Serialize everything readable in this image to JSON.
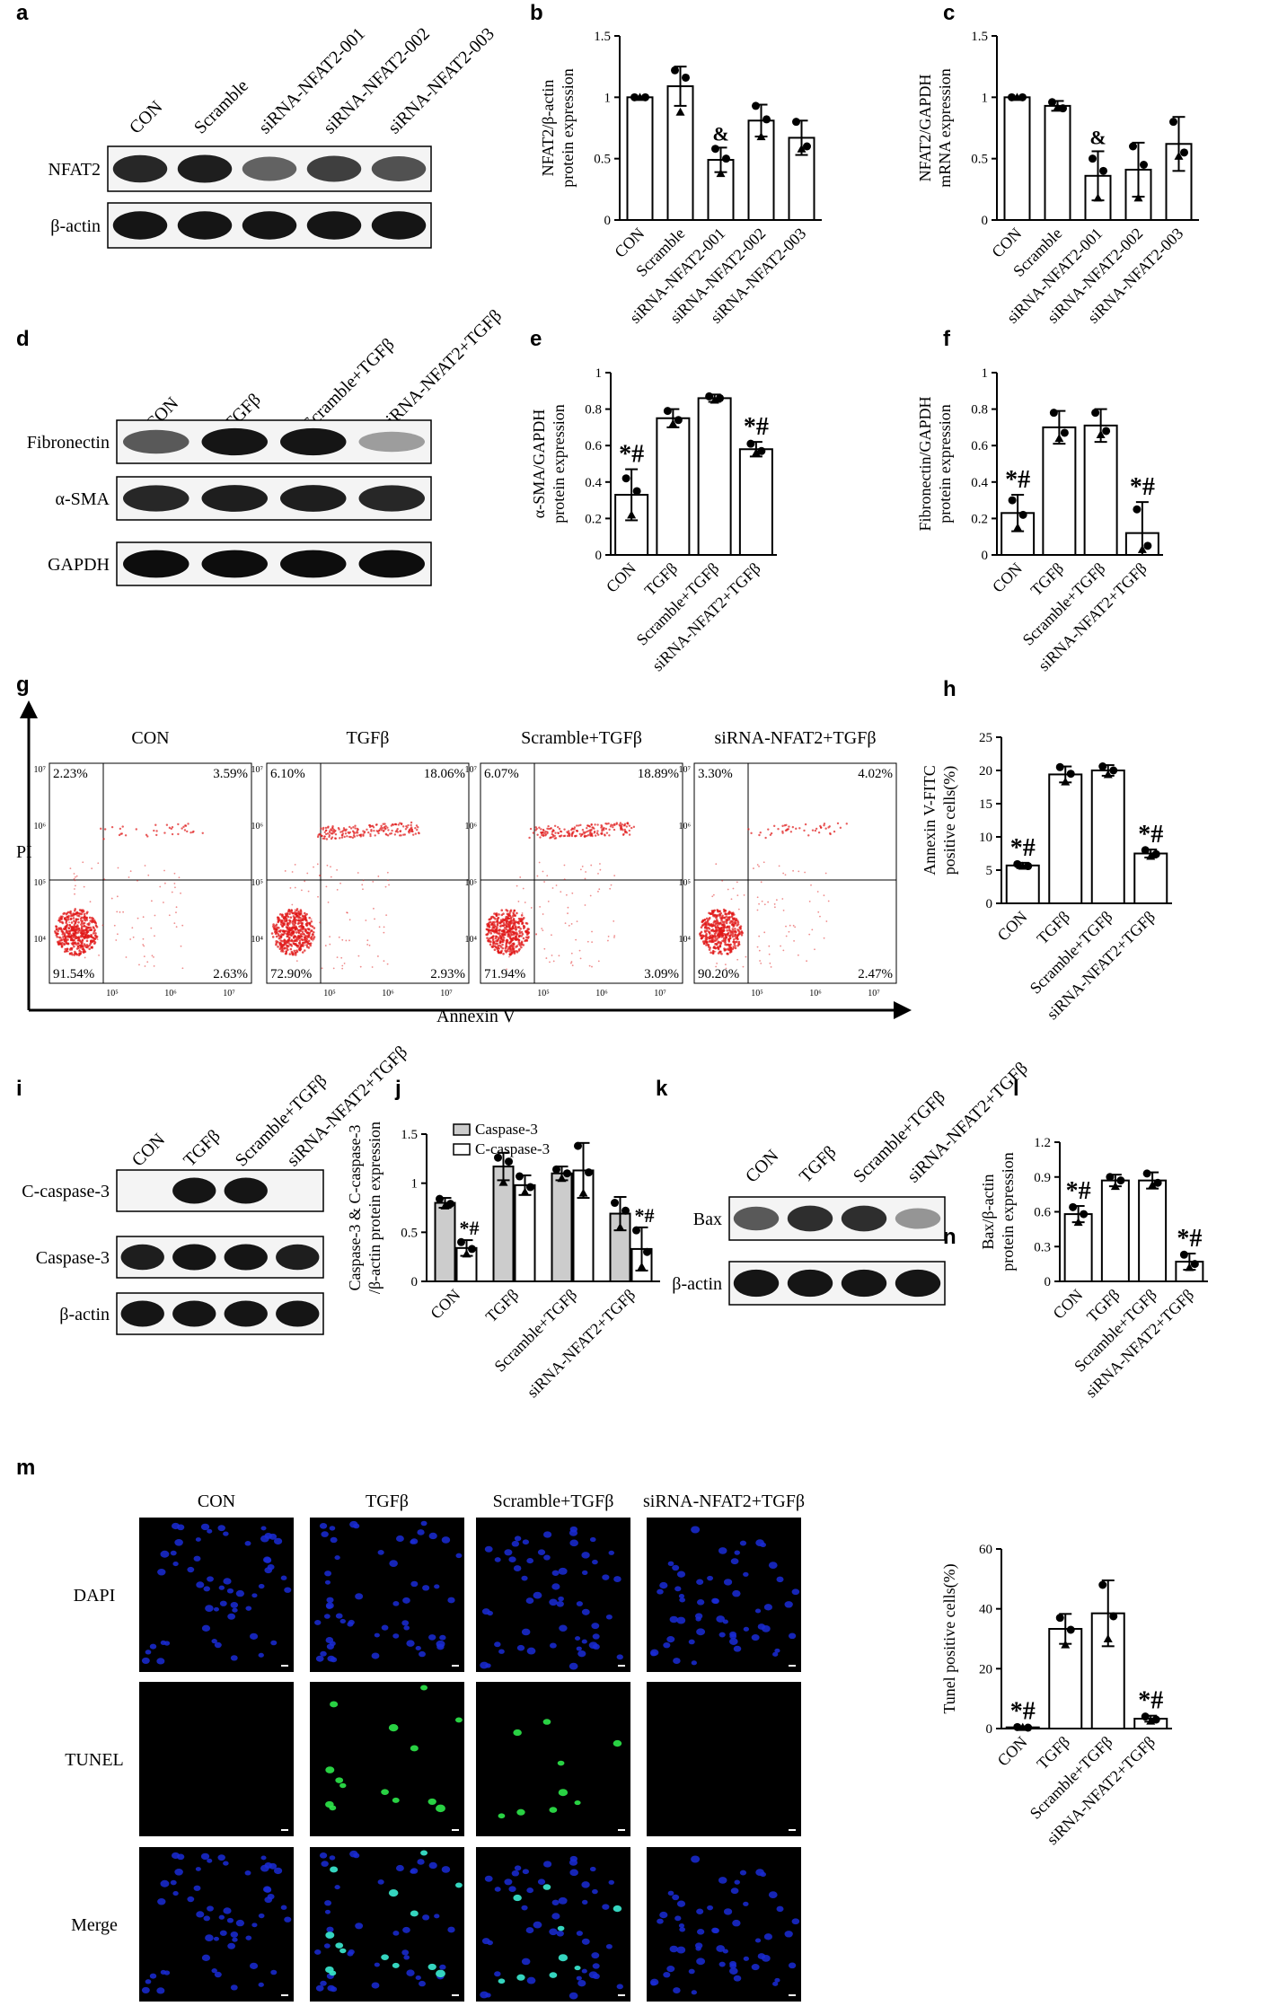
{
  "panels": {
    "a": {
      "letter": "a",
      "lanes": [
        "CON",
        "Scramble",
        "siRNA-NFAT2-001",
        "siRNA-NFAT2-002",
        "siRNA-NFAT2-003"
      ],
      "rows": [
        "NFAT2",
        "β-actin"
      ]
    },
    "d": {
      "letter": "d",
      "lanes": [
        "CON",
        "TGFβ",
        "Scramble+TGFβ",
        "siRNA-NFAT2+TGFβ"
      ],
      "rows": [
        "Fibronectin",
        "α-SMA",
        "GAPDH"
      ]
    },
    "g": {
      "letter": "g",
      "groups": [
        "CON",
        "TGFβ",
        "Scramble+TGFβ",
        "siRNA-NFAT2+TGFβ"
      ],
      "ylabel": "PI",
      "xlabel": "Annexin V",
      "quadrants": [
        {
          "ul": "2.23%",
          "ur": "3.59%",
          "ll": "91.54%",
          "lr": "2.63%"
        },
        {
          "ul": "6.10%",
          "ur": "18.06%",
          "ll": "72.90%",
          "lr": "2.93%"
        },
        {
          "ul": "6.07%",
          "ur": "18.89%",
          "ll": "71.94%",
          "lr": "3.09%"
        },
        {
          "ul": "3.30%",
          "ur": "4.02%",
          "ll": "90.20%",
          "lr": "2.47%"
        }
      ],
      "ylabels": [
        "10⁷",
        "10⁶",
        "10⁵",
        "10⁴"
      ],
      "xlabels": [
        "10⁵",
        "10⁶",
        "10⁷"
      ]
    },
    "i": {
      "letter": "i",
      "lanes": [
        "CON",
        "TGFβ",
        "Scramble+TGFβ",
        "siRNA-NFAT2+TGFβ"
      ],
      "rows": [
        "C-caspase-3",
        "Caspase-3",
        "β-actin"
      ]
    },
    "k": {
      "letter": "k",
      "lanes": [
        "CON",
        "TGFβ",
        "Scramble+TGFβ",
        "siRNA-NFAT2+TGFβ"
      ],
      "rows": [
        "Bax",
        "β-actin"
      ]
    },
    "m": {
      "letter": "m",
      "cols": [
        "CON",
        "TGFβ",
        "Scramble+TGFβ",
        "siRNA-NFAT2+TGFβ"
      ],
      "rows": [
        "DAPI",
        "TUNEL",
        "Merge"
      ]
    }
  },
  "chart_data": [
    {
      "id": "b",
      "letter": "b",
      "type": "bar",
      "ylabel": [
        "NFAT2/β-actin",
        "protein expression"
      ],
      "categories": [
        "CON",
        "Scramble",
        "siRNA-NFAT2-001",
        "siRNA-NFAT2-002",
        "siRNA-NFAT2-003"
      ],
      "values": [
        1.0,
        1.09,
        0.49,
        0.81,
        0.67
      ],
      "errors": [
        0.0,
        0.16,
        0.1,
        0.13,
        0.14
      ],
      "points": [
        [
          1.0,
          1.0,
          1.0
        ],
        [
          1.22,
          1.16,
          0.88
        ],
        [
          0.58,
          0.5,
          0.38
        ],
        [
          0.93,
          0.82,
          0.68
        ],
        [
          0.8,
          0.6,
          0.58
        ]
      ],
      "ylim": [
        0,
        1.5
      ],
      "yticks": [
        0.0,
        0.5,
        1.0,
        1.5
      ],
      "annotations": [
        "",
        "",
        "&",
        "",
        ""
      ]
    },
    {
      "id": "c",
      "letter": "c",
      "type": "bar",
      "ylabel": [
        "NFAT2/GAPDH",
        "mRNA expression"
      ],
      "categories": [
        "CON",
        "Scramble",
        "siRNA-NFAT2-001",
        "siRNA-NFAT2-002",
        "siRNA-NFAT2-003"
      ],
      "values": [
        1.0,
        0.93,
        0.36,
        0.41,
        0.62
      ],
      "errors": [
        0.0,
        0.04,
        0.2,
        0.22,
        0.22
      ],
      "points": [
        [
          1.0,
          1.0,
          1.0
        ],
        [
          0.96,
          0.91,
          0.92
        ],
        [
          0.5,
          0.4,
          0.18
        ],
        [
          0.6,
          0.45,
          0.18
        ],
        [
          0.8,
          0.55,
          0.52
        ]
      ],
      "ylim": [
        0,
        1.5
      ],
      "yticks": [
        0.0,
        0.5,
        1.0,
        1.5
      ],
      "annotations": [
        "",
        "",
        "&",
        "",
        ""
      ]
    },
    {
      "id": "e",
      "letter": "e",
      "type": "bar",
      "ylabel": [
        "α-SMA/GAPDH",
        "protein expression"
      ],
      "categories": [
        "CON",
        "TGFβ",
        "Scramble+TGFβ",
        "siRNA-NFAT2+TGFβ"
      ],
      "values": [
        0.33,
        0.75,
        0.86,
        0.58
      ],
      "errors": [
        0.14,
        0.05,
        0.02,
        0.04
      ],
      "points": [
        [
          0.42,
          0.35,
          0.22
        ],
        [
          0.79,
          0.74,
          0.72
        ],
        [
          0.87,
          0.86,
          0.85
        ],
        [
          0.61,
          0.57,
          0.56
        ]
      ],
      "ylim": [
        0,
        1.0
      ],
      "yticks": [
        0.0,
        0.2,
        0.4,
        0.6,
        0.8,
        1.0
      ],
      "annotations": [
        "*#",
        "",
        "",
        "*#"
      ]
    },
    {
      "id": "f",
      "letter": "f",
      "type": "bar",
      "ylabel": [
        "Fibronectin/GAPDH",
        "protein expression"
      ],
      "categories": [
        "CON",
        "TGFβ",
        "Scramble+TGFβ",
        "siRNA-NFAT2+TGFβ"
      ],
      "values": [
        0.23,
        0.7,
        0.71,
        0.12
      ],
      "errors": [
        0.1,
        0.09,
        0.09,
        0.17
      ],
      "points": [
        [
          0.3,
          0.22,
          0.15
        ],
        [
          0.78,
          0.67,
          0.64
        ],
        [
          0.78,
          0.68,
          0.66
        ],
        [
          0.25,
          0.05,
          0.03
        ]
      ],
      "ylim": [
        0,
        1.0
      ],
      "yticks": [
        0.0,
        0.2,
        0.4,
        0.6,
        0.8,
        1.0
      ],
      "annotations": [
        "*#",
        "",
        "",
        "*#"
      ]
    },
    {
      "id": "h",
      "letter": "h",
      "type": "bar",
      "ylabel": [
        "Annexin V-FITC",
        "positive cells(%)"
      ],
      "categories": [
        "CON",
        "TGFβ",
        "Scramble+TGFβ",
        "siRNA-NFAT2+TGFβ"
      ],
      "values": [
        5.7,
        19.4,
        20.0,
        7.5
      ],
      "errors": [
        0.4,
        1.2,
        0.8,
        0.6
      ],
      "points": [
        [
          5.9,
          5.6,
          5.6
        ],
        [
          20.5,
          19.5,
          18.3
        ],
        [
          20.6,
          20.0,
          19.4
        ],
        [
          8.0,
          7.4,
          7.1
        ]
      ],
      "ylim": [
        0,
        25
      ],
      "yticks": [
        0,
        5,
        10,
        15,
        20,
        25
      ],
      "annotations": [
        "*#",
        "",
        "",
        "*#"
      ]
    },
    {
      "id": "j",
      "letter": "j",
      "type": "bar",
      "ylabel": [
        "Caspase-3 & C-caspase-3",
        "/β-actin protein expression"
      ],
      "categories": [
        "CON",
        "TGFβ",
        "Scramble+TGFβ",
        "siRNA-NFAT2+TGFβ"
      ],
      "series": [
        {
          "name": "Caspase-3",
          "values": [
            0.8,
            1.17,
            1.1,
            0.69
          ],
          "errors": [
            0.05,
            0.14,
            0.07,
            0.17
          ],
          "points": [
            [
              0.84,
              0.79,
              0.77
            ],
            [
              1.26,
              1.22,
              1.01
            ],
            [
              1.14,
              1.1,
              1.05
            ],
            [
              0.8,
              0.72,
              0.55
            ]
          ],
          "color": "#cccccc"
        },
        {
          "name": "C-caspase-3",
          "values": [
            0.34,
            0.98,
            1.13,
            0.33
          ],
          "errors": [
            0.08,
            0.1,
            0.28,
            0.22
          ],
          "points": [
            [
              0.4,
              0.33,
              0.28
            ],
            [
              1.07,
              0.96,
              0.91
            ],
            [
              1.38,
              1.11,
              0.9
            ],
            [
              0.52,
              0.3,
              0.15
            ]
          ],
          "color": "#ffffff"
        }
      ],
      "ylim": [
        0,
        1.5
      ],
      "yticks": [
        0.0,
        0.5,
        1.0,
        1.5
      ],
      "annotations": [
        "*#",
        "",
        "",
        "*#"
      ],
      "legend": "top"
    },
    {
      "id": "l",
      "letter": "l",
      "type": "bar",
      "ylabel": [
        "Bax/β-actin",
        "protein expression"
      ],
      "categories": [
        "CON",
        "TGFβ",
        "Scramble+TGFβ",
        "siRNA-NFAT2+TGFβ"
      ],
      "values": [
        0.58,
        0.87,
        0.87,
        0.17
      ],
      "errors": [
        0.07,
        0.05,
        0.07,
        0.07
      ],
      "points": [
        [
          0.64,
          0.58,
          0.51
        ],
        [
          0.9,
          0.87,
          0.82
        ],
        [
          0.93,
          0.85,
          0.83
        ],
        [
          0.23,
          0.15,
          0.12
        ]
      ],
      "ylim": [
        0,
        1.2
      ],
      "yticks": [
        0.0,
        0.3,
        0.6,
        0.9,
        1.2
      ],
      "annotations": [
        "*#",
        "",
        "",
        "*#"
      ]
    },
    {
      "id": "n",
      "letter": "n",
      "type": "bar",
      "ylabel": [
        "Tunel positive cells(%)"
      ],
      "categories": [
        "CON",
        "TGFβ",
        "Scramble+TGFβ",
        "siRNA-NFAT2+TGFβ"
      ],
      "values": [
        0.4,
        33.3,
        38.5,
        3.3
      ],
      "errors": [
        0.3,
        5.0,
        11.0,
        1.0
      ],
      "points": [
        [
          0.5,
          0.3,
          0.4
        ],
        [
          37.0,
          33.0,
          28.0
        ],
        [
          48.0,
          37.5,
          30.0
        ],
        [
          4.0,
          3.0,
          2.5
        ]
      ],
      "ylim": [
        0,
        60
      ],
      "yticks": [
        0,
        20,
        40,
        60
      ],
      "annotations": [
        "*#",
        "",
        "",
        "*#"
      ]
    }
  ]
}
